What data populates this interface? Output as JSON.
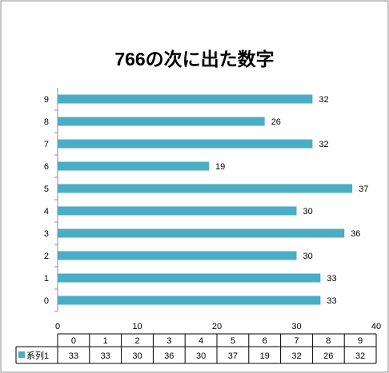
{
  "chart_data": {
    "type": "bar",
    "orientation": "horizontal",
    "title": "766の次に出た数字",
    "categories": [
      "0",
      "1",
      "2",
      "3",
      "4",
      "5",
      "6",
      "7",
      "8",
      "9"
    ],
    "series": [
      {
        "name": "系列1",
        "values": [
          33,
          33,
          30,
          36,
          30,
          37,
          19,
          32,
          26,
          32
        ]
      }
    ],
    "xlim": [
      0,
      40
    ],
    "x_ticks": [
      "0",
      "10",
      "20",
      "30",
      "40"
    ],
    "grid": false,
    "data_labels": true,
    "legend_placement": "bottom (data table)",
    "colors": {
      "bar": "#4BACC6",
      "border": "#8C8C8C",
      "table_line": "#000000"
    }
  }
}
